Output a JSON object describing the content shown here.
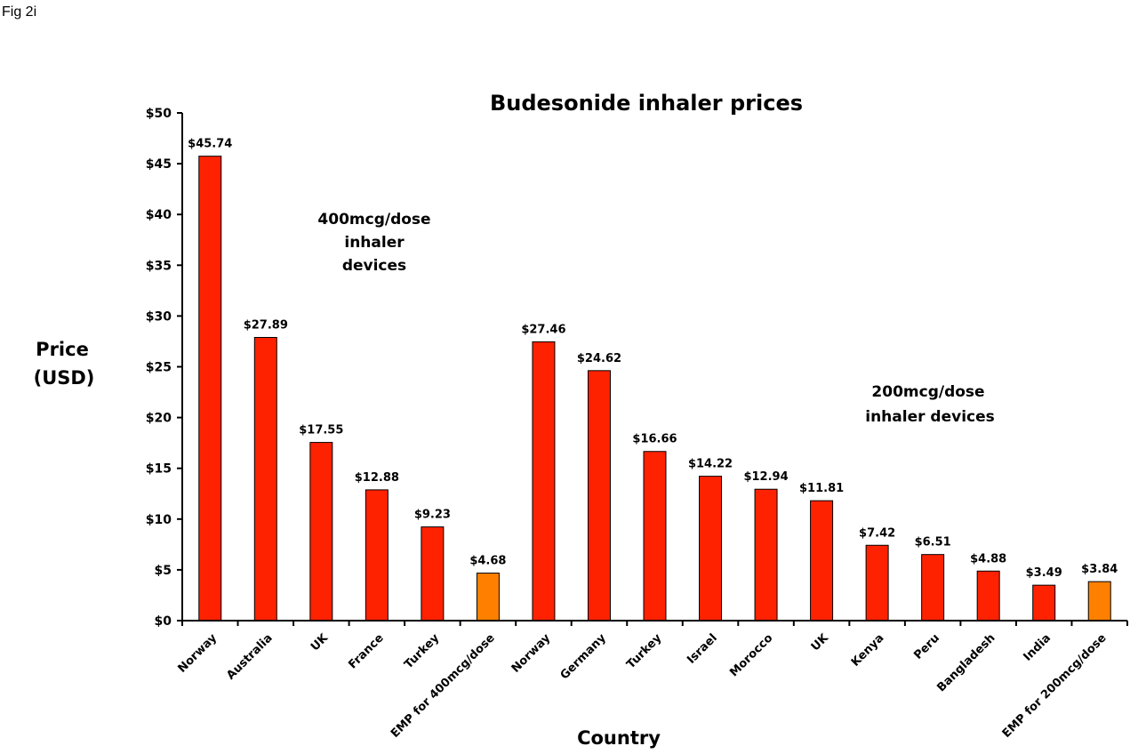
{
  "figure_label": "Fig 2i",
  "chart_data": {
    "type": "bar",
    "title": "Budesonide inhaler prices",
    "xlabel": "Country",
    "ylabel_lines": [
      "Price",
      "(USD)"
    ],
    "ylim": [
      0,
      50
    ],
    "yticks": [
      0,
      5,
      10,
      15,
      20,
      25,
      30,
      35,
      40,
      45,
      50
    ],
    "ytick_labels": [
      "$0",
      "$5",
      "$10",
      "$15",
      "$20",
      "$25",
      "$30",
      "$35",
      "$40",
      "$45",
      "$50"
    ],
    "categories": [
      "Norway",
      "Australia",
      "UK",
      "France",
      "Turkey",
      "EMP for 400mcg/dose",
      "Norway",
      "Germany",
      "Turkey",
      "Israel",
      "Morocco",
      "UK",
      "Kenya",
      "Peru",
      "Bangladesh",
      "India",
      "EMP for 200mcg/dose"
    ],
    "values": [
      45.74,
      27.89,
      17.55,
      12.88,
      9.23,
      4.68,
      27.46,
      24.62,
      16.66,
      14.22,
      12.94,
      11.81,
      7.42,
      6.51,
      4.88,
      3.49,
      3.84
    ],
    "data_labels": [
      "$45.74",
      "$27.89",
      "$17.55",
      "$12.88",
      "$9.23",
      "$4.68",
      "$27.46",
      "$24.62",
      "$16.66",
      "$14.22",
      "$12.94",
      "$11.81",
      "$7.42",
      "$6.51",
      "$4.88",
      "$3.49",
      "$3.84"
    ],
    "highlight_indices": [
      5,
      16
    ],
    "colors": {
      "bar": "#ff2200",
      "highlight": "#ff8000",
      "outline": "#000000"
    },
    "annotations": [
      {
        "lines": [
          "400mcg/dose",
          "inhaler",
          "devices"
        ]
      },
      {
        "lines": [
          "200mcg/dose",
          "inhaler devices"
        ]
      }
    ],
    "grid": false,
    "legend": "none"
  }
}
